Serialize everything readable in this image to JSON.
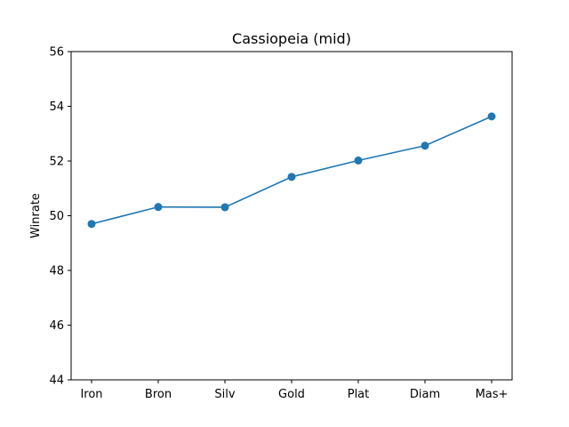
{
  "chart_data": {
    "type": "line",
    "title": "Cassiopeia (mid)",
    "xlabel": "",
    "ylabel": "Winrate",
    "categories": [
      "Iron",
      "Bron",
      "Silv",
      "Gold",
      "Plat",
      "Diam",
      "Mas+"
    ],
    "series": [
      {
        "values": [
          49.7,
          50.32,
          50.31,
          51.42,
          52.02,
          52.56,
          53.63
        ]
      }
    ],
    "ylim": [
      44,
      56
    ],
    "yticks": [
      44,
      46,
      48,
      50,
      52,
      54,
      56
    ],
    "grid": false,
    "legend": "none",
    "colors": {
      "series": "#1f77b4",
      "axes": "#000000",
      "background": "#ffffff"
    }
  }
}
